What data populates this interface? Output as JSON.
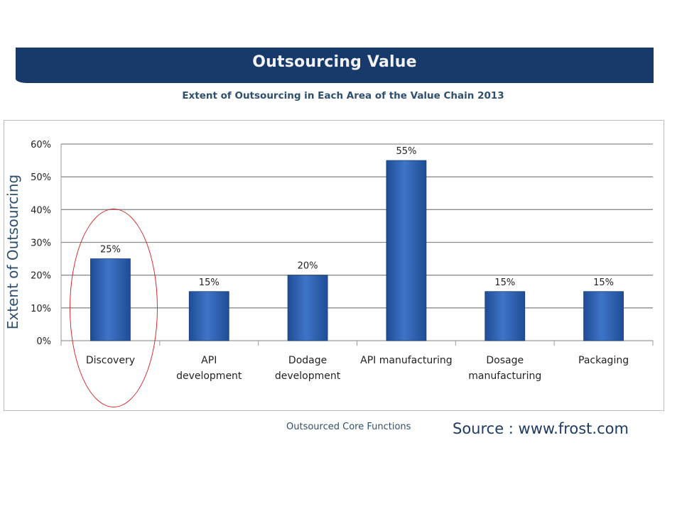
{
  "header": {
    "banner_title": "Outsourcing Value",
    "subtitle": "Extent of Outsourcing in Each Area of the Value Chain 2013"
  },
  "footer": {
    "source": "Source : www.frost.com"
  },
  "colors": {
    "banner": "#173a6b",
    "bar": "#3f74c6",
    "bar_dark": "#1f4d96",
    "highlight": "#d42a2a",
    "axis_text": "#2f4f70"
  },
  "chart_data": {
    "type": "bar",
    "title": "Extent of Outsourcing in Each Area of the Value Chain 2013",
    "xlabel": "Outsourced Core Functions",
    "ylabel": "Extent of Outsourcing",
    "categories": [
      [
        "Discovery"
      ],
      [
        "API",
        "development"
      ],
      [
        "Dodage",
        "development"
      ],
      [
        "API manufacturing"
      ],
      [
        "Dosage",
        "manufacturing"
      ],
      [
        "Packaging"
      ]
    ],
    "values": [
      25,
      15,
      20,
      55,
      15,
      15
    ],
    "data_labels": [
      "25%",
      "15%",
      "20%",
      "55%",
      "15%",
      "15%"
    ],
    "y_ticks": [
      "0%",
      "10%",
      "20%",
      "30%",
      "40%",
      "50%",
      "60%"
    ],
    "ylim": [
      0,
      60
    ],
    "grid": true,
    "legend": "none",
    "highlighted_category": "Discovery"
  }
}
